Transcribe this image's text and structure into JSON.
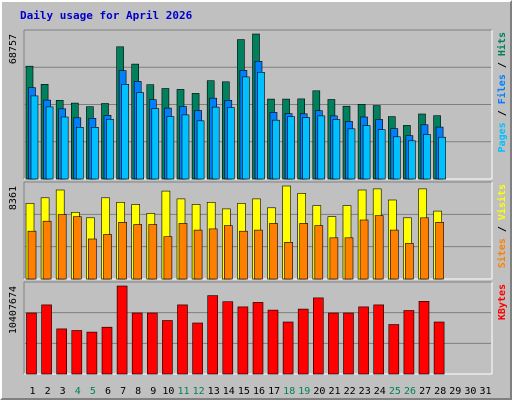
{
  "title": "Daily usage for April 2026",
  "colors": {
    "background": "#c0c0c0",
    "hits": "#00805c",
    "files": "#0080ff",
    "pages": "#00c0ff",
    "visits": "#ffff00",
    "sites": "#ff8000",
    "kbytes": "#ff0000",
    "title": "#0000cc"
  },
  "chart_data": [
    {
      "type": "bar",
      "panel": "hits-files-pages",
      "y_max_label": "68757",
      "legend": [
        "Pages",
        "Files",
        "Hits"
      ],
      "categories": [
        "1",
        "2",
        "3",
        "4",
        "5",
        "6",
        "7",
        "8",
        "9",
        "10",
        "11",
        "12",
        "13",
        "14",
        "15",
        "16",
        "17",
        "18",
        "19",
        "20",
        "21",
        "22",
        "23",
        "24",
        "25",
        "26",
        "27",
        "28",
        "29",
        "30",
        "31"
      ],
      "weekend_days": [
        "4",
        "5",
        "11",
        "12",
        "18",
        "19",
        "25",
        "26"
      ],
      "series": [
        {
          "name": "Hits",
          "values": [
            53500,
            44900,
            37300,
            36000,
            34300,
            35800,
            62700,
            54500,
            44700,
            42900,
            42500,
            40600,
            46600,
            46100,
            66100,
            68757,
            37900,
            37900,
            38000,
            41800,
            37700,
            34500,
            35400,
            34800,
            29600,
            25400,
            30800,
            30000,
            0,
            0,
            0
          ]
        },
        {
          "name": "Files",
          "values": [
            43300,
            37400,
            33300,
            29000,
            28800,
            30200,
            51400,
            46300,
            37600,
            33600,
            34400,
            32500,
            38300,
            37300,
            51500,
            55800,
            31600,
            31000,
            30900,
            32400,
            29900,
            27300,
            29400,
            28200,
            23900,
            20600,
            25700,
            24600,
            0,
            0,
            0
          ]
        },
        {
          "name": "Pages",
          "values": [
            39400,
            34200,
            29400,
            24500,
            24500,
            28300,
            44900,
            40900,
            33400,
            29600,
            30400,
            27600,
            34100,
            33900,
            48400,
            50600,
            27900,
            29600,
            29100,
            29900,
            28200,
            23800,
            25300,
            23400,
            20000,
            18100,
            21100,
            19800,
            0,
            0,
            0
          ]
        }
      ]
    },
    {
      "type": "bar",
      "panel": "visits-sites",
      "y_max_label": "8361",
      "legend": [
        "Sites",
        "Visits"
      ],
      "categories": [
        "1",
        "2",
        "3",
        "4",
        "5",
        "6",
        "7",
        "8",
        "9",
        "10",
        "11",
        "12",
        "13",
        "14",
        "15",
        "16",
        "17",
        "18",
        "19",
        "20",
        "21",
        "22",
        "23",
        "24",
        "25",
        "26",
        "27",
        "28",
        "29",
        "30",
        "31"
      ],
      "series": [
        {
          "name": "Visits",
          "values": [
            6800,
            7300,
            8000,
            6000,
            5500,
            7300,
            6900,
            6700,
            5900,
            7900,
            7200,
            6700,
            6900,
            6300,
            6800,
            7200,
            6400,
            8361,
            7700,
            6600,
            5600,
            6600,
            8000,
            8100,
            7100,
            5500,
            8100,
            6100,
            0,
            0,
            0
          ]
        },
        {
          "name": "Sites",
          "values": [
            4300,
            5200,
            5800,
            5600,
            3600,
            4000,
            5100,
            4900,
            4900,
            3800,
            5000,
            4400,
            4500,
            4800,
            4300,
            4400,
            5000,
            3300,
            5000,
            4800,
            3700,
            3700,
            5300,
            5700,
            4400,
            3200,
            5500,
            5100,
            0,
            0,
            0
          ]
        }
      ]
    },
    {
      "type": "bar",
      "panel": "kbytes",
      "y_max_label": "10407674",
      "legend": [
        "KBytes"
      ],
      "categories": [
        "1",
        "2",
        "3",
        "4",
        "5",
        "6",
        "7",
        "8",
        "9",
        "10",
        "11",
        "12",
        "13",
        "14",
        "15",
        "16",
        "17",
        "18",
        "19",
        "20",
        "21",
        "22",
        "23",
        "24",
        "25",
        "26",
        "27",
        "28",
        "29",
        "30",
        "31"
      ],
      "series": [
        {
          "name": "KBytes",
          "values": [
            7210000,
            8170000,
            5330000,
            5140000,
            4950000,
            5530000,
            10407674,
            7210000,
            7210000,
            6330000,
            8170000,
            6030000,
            9270000,
            8550000,
            7930000,
            8470000,
            7560000,
            6150000,
            7680000,
            9000000,
            7210000,
            7210000,
            7930000,
            8170000,
            5850000,
            7510000,
            8600000,
            6150000,
            0,
            0,
            0
          ]
        }
      ]
    }
  ]
}
